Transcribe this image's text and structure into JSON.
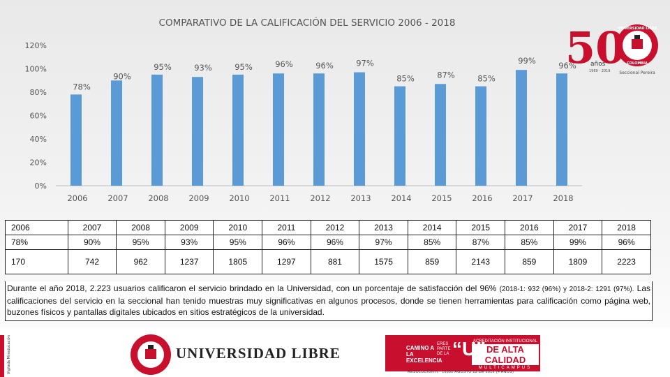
{
  "chart_data": {
    "type": "bar",
    "title": "COMPARATIVO DE LA CALIFICACIÓN DEL SERVICIO 2006 - 2018",
    "categories": [
      "2006",
      "2007",
      "2008",
      "2009",
      "2010",
      "2011",
      "2012",
      "2013",
      "2014",
      "2015",
      "2016",
      "2017",
      "2018"
    ],
    "values": [
      78,
      90,
      95,
      93,
      95,
      96,
      96,
      97,
      85,
      87,
      85,
      99,
      96
    ],
    "data_labels": [
      "78%",
      "90%",
      "95%",
      "93%",
      "95%",
      "96%",
      "96%",
      "97%",
      "85%",
      "87%",
      "85%",
      "99%",
      "96%"
    ],
    "ylim": [
      0,
      120
    ],
    "yticks": [
      0,
      20,
      40,
      60,
      80,
      100,
      120
    ],
    "ytick_labels": [
      "0%",
      "20%",
      "40%",
      "60%",
      "80%",
      "100%",
      "120%"
    ],
    "xlabel": "",
    "ylabel": "",
    "grid": false,
    "bar_color": "#5b9bd5"
  },
  "logo": {
    "number": "50",
    "anos": "años",
    "years": "1969 - 2019",
    "seccional": "Seccional Pereira",
    "seal_top": "UNIVERSIDAD LIBRE",
    "seal_bottom": "COLOMBIA"
  },
  "table": {
    "years": [
      "2006",
      "2007",
      "2008",
      "2009",
      "2010",
      "2011",
      "2012",
      "2013",
      "2014",
      "2015",
      "2016",
      "2017",
      "2018"
    ],
    "percents": [
      "78%",
      "90%",
      "95%",
      "93%",
      "95%",
      "96%",
      "96%",
      "97%",
      "85%",
      "87%",
      "85%",
      "99%",
      "96%"
    ],
    "counts": [
      "170",
      "742",
      "962",
      "1237",
      "1805",
      "1297",
      "881",
      "1575",
      "859",
      "2143",
      "859",
      "1809",
      "2223"
    ]
  },
  "description": {
    "part1": "Durante el año 2018, 2.223 usuarios calificaron el servicio brindado en la Universidad,  con un porcentaje de satisfacción del 96% ",
    "part2": "(2018-1: 932 (96%) y 2018-2: 1291 (97%).",
    "part3": "  Las calificaciones del servicio en la seccional han tenido muestras muy significativas en algunos procesos, donde se tienen herramientas para calificación como página web, buzones físicos y pantallas digitales ubicados en sitios estratégicos de la universidad."
  },
  "footer": {
    "vigilado": "Vigilada Mineducación",
    "brand": "UNIVERSIDAD LIBRE",
    "accred_left": "CAMINO A LA EXCELENCIA",
    "accred_mid": "ERES PARTE DE LA",
    "accred_u": "“U”",
    "accred_line1": "ACREDITACIÓN INSTITUCIONAL",
    "accred_line2": "DE ALTA CALIDAD",
    "accred_line3": "MULTICAMPUS",
    "resolucion": "RESOLUCIÓN n.º 16892 AGOSTO 22 DE 2016 (4 AÑOS)"
  },
  "colors": {
    "red": "#c8102e",
    "bar": "#5b9bd5"
  }
}
